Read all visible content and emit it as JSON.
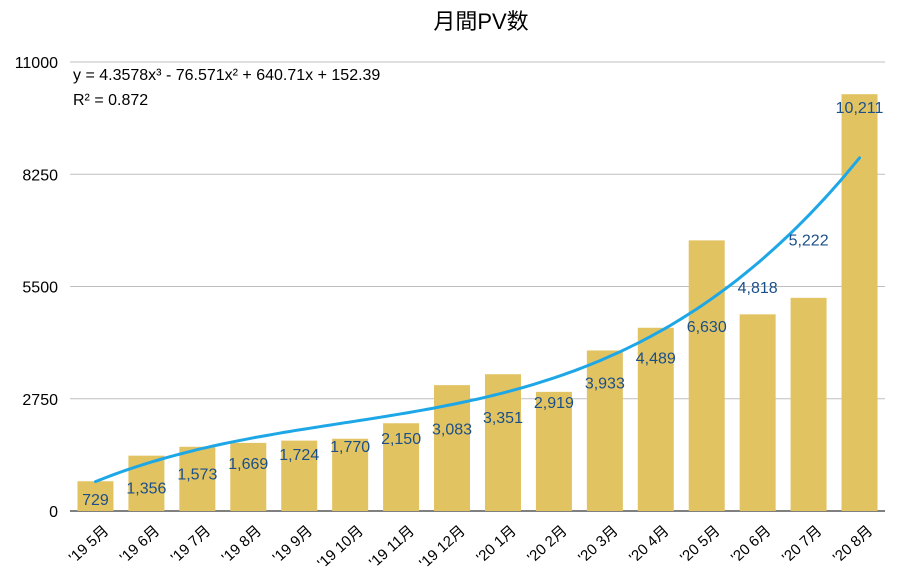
{
  "chart_data": {
    "type": "bar",
    "title": "月間PV数",
    "xlabel": "",
    "ylabel": "",
    "ylim": [
      0,
      11000
    ],
    "yticks": [
      0,
      2750,
      5500,
      8250,
      11000
    ],
    "categories": [
      "'19 5月",
      "'19 6月",
      "'19 7月",
      "'19 8月",
      "'19 9月",
      "'19 10月",
      "'19 11月",
      "'19 12月",
      "'20 1月",
      "'20 2月",
      "'20 3月",
      "'20 4月",
      "'20 5月",
      "'20 6月",
      "'20 7月",
      "'20 8月"
    ],
    "values": [
      729,
      1356,
      1573,
      1669,
      1724,
      1770,
      2150,
      3083,
      3351,
      2919,
      3933,
      4489,
      6630,
      4818,
      5222,
      10211
    ],
    "data_labels": [
      "729",
      "1,356",
      "1,573",
      "1,669",
      "1,724",
      "1,770",
      "2,150",
      "3,083",
      "3,351",
      "2,919",
      "3,933",
      "4,489",
      "6,630",
      "4,818",
      "5,222",
      "10,211"
    ],
    "trendline": {
      "type": "polynomial",
      "order": 3,
      "coefficients": [
        4.3578,
        -76.571,
        640.71,
        152.39
      ],
      "equation": "y = 4.3578x³ - 76.571x² + 640.71x + 152.39",
      "r_squared": "R² = 0.872"
    },
    "grid": true,
    "legend": "none",
    "colors": {
      "bar": "#e2c362",
      "trendline": "#1ea7e6",
      "data_label": "#1b4f8a",
      "grid": "#bfbfbf"
    }
  }
}
